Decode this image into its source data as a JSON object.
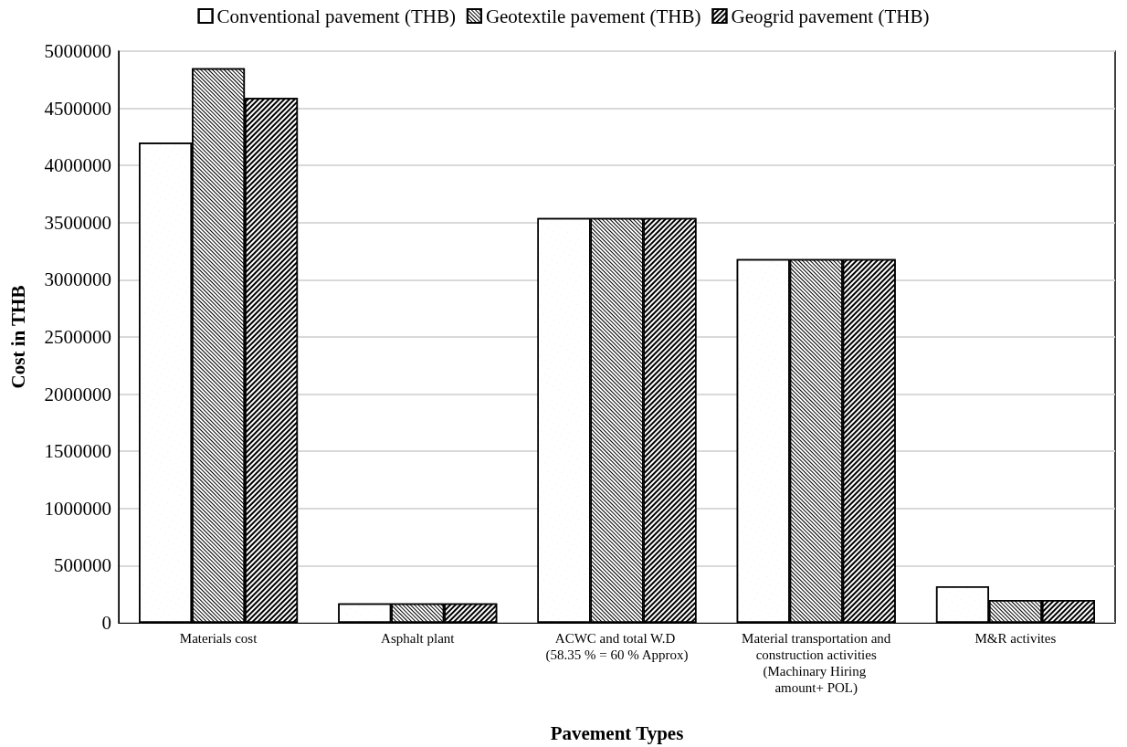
{
  "chart_data": {
    "type": "bar",
    "xlabel": "Pavement Types",
    "ylabel": "Cost in THB",
    "categories": [
      "Materials cost",
      "Asphalt plant",
      "ACWC and total W.D (58.35 % = 60 % Approx)",
      "Material transportation and construction activities (Machinary Hiring amount+ POL)",
      "M&R activites"
    ],
    "series": [
      {
        "name": "Conventional pavement (THB)",
        "color": "#ffffff",
        "values": [
          4200000,
          170000,
          3540000,
          3180000,
          320000
        ]
      },
      {
        "name": "Geotextile pavement (THB)",
        "color": "#ffffff",
        "values": [
          4850000,
          170000,
          3540000,
          3180000,
          200000
        ]
      },
      {
        "name": "Geogrid pavement (THB)",
        "color": "#ffffff",
        "values": [
          4590000,
          170000,
          3540000,
          3180000,
          200000
        ]
      }
    ],
    "ylim": [
      0,
      5000000
    ],
    "yticks": [
      0,
      500000,
      1000000,
      1500000,
      2000000,
      2500000,
      3000000,
      3500000,
      4000000,
      4500000,
      5000000
    ],
    "grid": "y",
    "legend": "top"
  }
}
